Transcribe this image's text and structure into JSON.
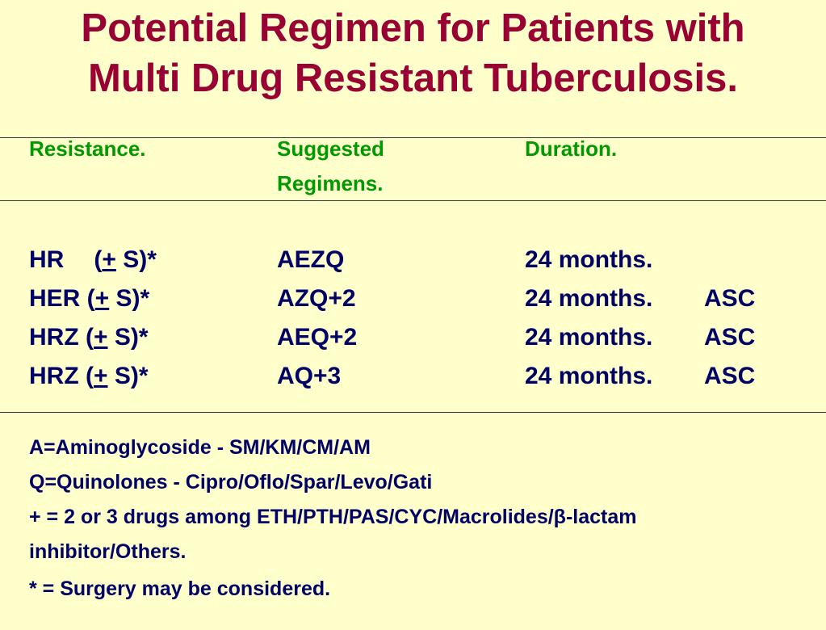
{
  "title": {
    "line1": "Potential Regimen for Patients with",
    "line2": "Multi Drug Resistant Tuberculosis."
  },
  "table": {
    "headers": {
      "resistance": "Resistance.",
      "regimens_line1": "Suggested",
      "regimens_line2": "Regimens.",
      "duration": "Duration."
    },
    "rows": [
      {
        "resistance_prefix": "HR",
        "plusminus": "+",
        "resistance_suffix": " S)*",
        "regimen": "AEZQ",
        "duration": "24 months.",
        "note": ""
      },
      {
        "resistance_prefix": "HER (",
        "plusminus": "+",
        "resistance_suffix": " S)*",
        "regimen": "AZQ+2",
        "duration": "24 months.",
        "note": "ASC"
      },
      {
        "resistance_prefix": "HRZ (",
        "plusminus": "+",
        "resistance_suffix": " S)*",
        "regimen": "AEQ+2",
        "duration": "24 months.",
        "note": "ASC"
      },
      {
        "resistance_prefix": "HRZ (",
        "plusminus": "+",
        "resistance_suffix": " S)*",
        "regimen": "AQ+3",
        "duration": "24 months.",
        "note": "ASC"
      }
    ]
  },
  "notes": {
    "line1": "A=Aminoglycoside -  SM/KM/CM/AM",
    "line2": "Q=Quinolones - Cipro/Oflo/Spar/Levo/Gati",
    "line3": "+ = 2 or 3 drugs among ETH/PTH/PAS/CYC/Macrolides/β-lactam",
    "line4": "inhibitor/Others.",
    "line5": "* = Surgery may be considered."
  }
}
